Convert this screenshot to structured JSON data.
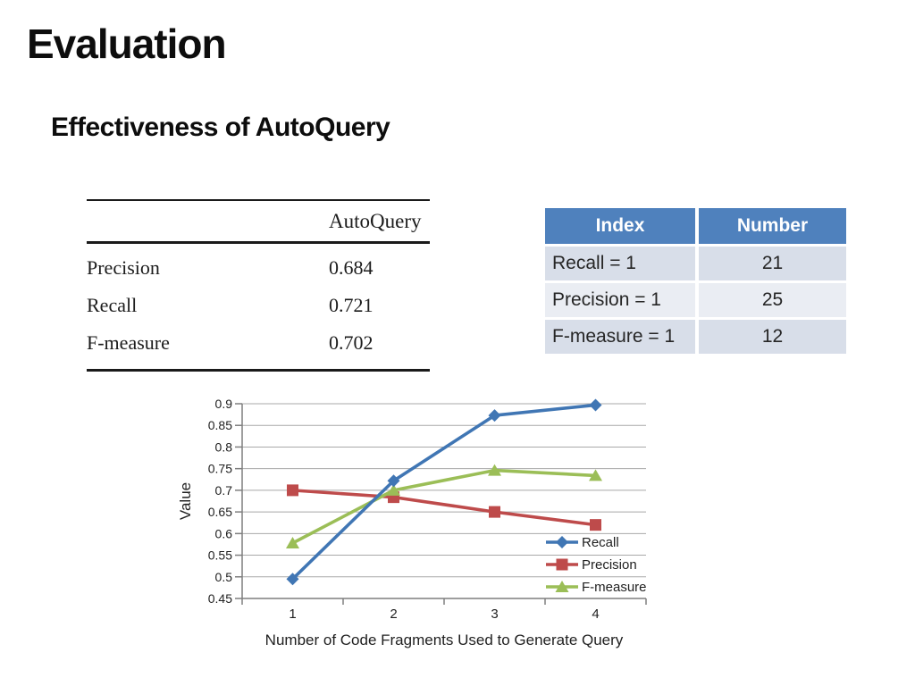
{
  "slide": {
    "title": "Evaluation",
    "subtitle": "Effectiveness of AutoQuery"
  },
  "left_table": {
    "header": [
      "",
      "AutoQuery"
    ],
    "rows": [
      [
        "Precision",
        "0.684"
      ],
      [
        "Recall",
        "0.721"
      ],
      [
        "F-measure",
        "0.702"
      ]
    ]
  },
  "right_table": {
    "headers": [
      "Index",
      "Number"
    ],
    "rows": [
      [
        "Recall = 1",
        "21"
      ],
      [
        "Precision = 1",
        "25"
      ],
      [
        "F-measure = 1",
        "12"
      ]
    ],
    "header_bg": "#4F81BD",
    "row_bg_odd": "#D8DEE9",
    "row_bg_even": "#EAEDF3"
  },
  "chart_data": {
    "type": "line",
    "x": [
      1,
      2,
      3,
      4
    ],
    "series": [
      {
        "name": "Recall",
        "color": "#4076B4",
        "marker": "diamond",
        "values": [
          0.495,
          0.722,
          0.873,
          0.897
        ]
      },
      {
        "name": "Precision",
        "color": "#BE4B4B",
        "marker": "square",
        "values": [
          0.7,
          0.684,
          0.65,
          0.62
        ]
      },
      {
        "name": "F-measure",
        "color": "#9BBE57",
        "marker": "triangle",
        "values": [
          0.578,
          0.7,
          0.746,
          0.734
        ]
      }
    ],
    "xlabel": "Number of Code Fragments Used to Generate Query",
    "ylabel": "Value",
    "ylim": [
      0.45,
      0.9
    ],
    "ytick_step": 0.05,
    "grid": true,
    "legend_position": "inside-right",
    "axis_color": "#7f7f7f",
    "grid_color": "#a8a8a8",
    "text_color": "#1f1f1f"
  }
}
